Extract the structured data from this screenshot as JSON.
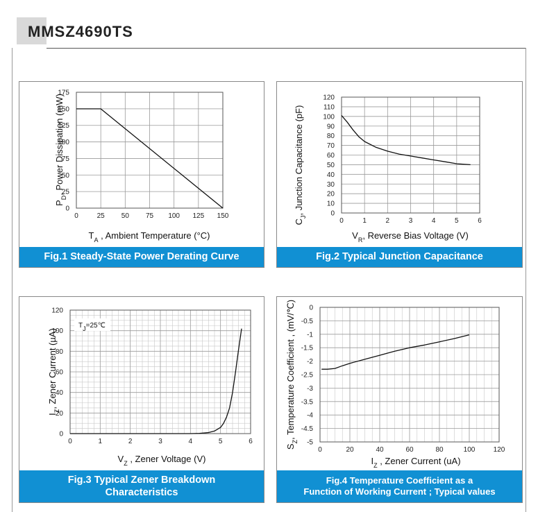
{
  "header": {
    "title": "MMSZ4690TS"
  },
  "captions": {
    "fig1": "Fig.1 Steady-State Power Derating Curve",
    "fig2": "Fig.2 Typical Junction Capacitance",
    "fig3_line1": "Fig.3 Typical Zener Breakdown",
    "fig3_line2": "Characteristics",
    "fig4_line1": "Fig.4 Temperature Coefficient as a",
    "fig4_line2": "Function of Working Current ; Typical values"
  },
  "chart_data": [
    {
      "id": "fig1",
      "type": "line",
      "title": "Fig.1 Steady-State Power Derating Curve",
      "ylabel_parts": [
        "P",
        "D",
        ", Power Dissipation (mW)"
      ],
      "xlabel_parts": [
        "T",
        "A",
        " , Ambient Temperature  (°C)"
      ],
      "xlim": [
        0,
        150
      ],
      "ylim": [
        0,
        175
      ],
      "xticks": [
        0,
        25,
        50,
        75,
        100,
        125,
        150
      ],
      "yticks": [
        0,
        25,
        50,
        75,
        100,
        125,
        150,
        175
      ],
      "grid": true,
      "series": [
        {
          "x": [
            0,
            25,
            150
          ],
          "y": [
            150,
            150,
            0
          ]
        }
      ]
    },
    {
      "id": "fig2",
      "type": "line",
      "title": "Fig.2 Typical Junction Capacitance",
      "ylabel_parts": [
        "C",
        "J",
        ", Junction Capacitance (pF)"
      ],
      "xlabel_parts": [
        "V",
        "R",
        ", Reverse Bias Voltage (V)"
      ],
      "xlim": [
        0,
        6
      ],
      "ylim": [
        0,
        120
      ],
      "xticks": [
        0,
        1,
        2,
        3,
        4,
        5,
        6
      ],
      "yticks": [
        0,
        10,
        20,
        30,
        40,
        50,
        60,
        70,
        80,
        90,
        100,
        110,
        120
      ],
      "grid": true,
      "series": [
        {
          "x": [
            0,
            0.25,
            0.5,
            0.75,
            1,
            1.5,
            2,
            2.5,
            3,
            3.5,
            4,
            4.5,
            5,
            5.6
          ],
          "y": [
            101,
            94,
            86,
            79,
            74,
            68,
            64,
            61,
            59,
            57,
            55,
            53,
            51,
            50
          ]
        }
      ]
    },
    {
      "id": "fig3",
      "type": "line",
      "title": "Fig.3 Typical Zener Breakdown Characteristics",
      "ylabel_parts": [
        "I",
        "Z",
        ", Zener Current (µA)"
      ],
      "xlabel_parts": [
        "V",
        "Z",
        " , Zener Voltage (V)"
      ],
      "annotation_parts": [
        "T",
        "J",
        "=25℃"
      ],
      "xlim": [
        0,
        6
      ],
      "ylim": [
        0,
        120
      ],
      "xticks": [
        0,
        1,
        2,
        3,
        4,
        5,
        6
      ],
      "yticks": [
        0,
        20,
        40,
        60,
        80,
        100,
        120
      ],
      "grid": true,
      "series": [
        {
          "x": [
            0,
            4.0,
            4.3,
            4.6,
            4.8,
            5.0,
            5.1,
            5.2,
            5.3,
            5.4,
            5.5,
            5.6,
            5.7
          ],
          "y": [
            0,
            0,
            0.3,
            1,
            2.5,
            6,
            10,
            16,
            25,
            40,
            60,
            82,
            102
          ]
        }
      ]
    },
    {
      "id": "fig4",
      "type": "line",
      "title": "Fig.4 Temperature Coefficient as a Function of Working Current ; Typical values",
      "ylabel_parts": [
        "S",
        "Z",
        ", Temperature Coefficient , (mV/℃)"
      ],
      "xlabel_parts": [
        "I",
        "Z",
        " , Zener Current (uA)"
      ],
      "xlim": [
        0,
        120
      ],
      "ylim": [
        -5,
        0
      ],
      "xticks": [
        0,
        20,
        40,
        60,
        80,
        100,
        120
      ],
      "yticks": [
        0,
        -0.5,
        -1,
        -1.5,
        -2,
        -2.5,
        -3,
        -3.5,
        -4,
        -4.5,
        -5
      ],
      "grid": true,
      "series": [
        {
          "x": [
            1,
            5,
            10,
            15,
            20,
            30,
            40,
            50,
            60,
            70,
            80,
            90,
            100
          ],
          "y": [
            -2.3,
            -2.3,
            -2.27,
            -2.17,
            -2.08,
            -1.93,
            -1.78,
            -1.63,
            -1.5,
            -1.4,
            -1.28,
            -1.16,
            -1.02
          ]
        }
      ]
    }
  ]
}
